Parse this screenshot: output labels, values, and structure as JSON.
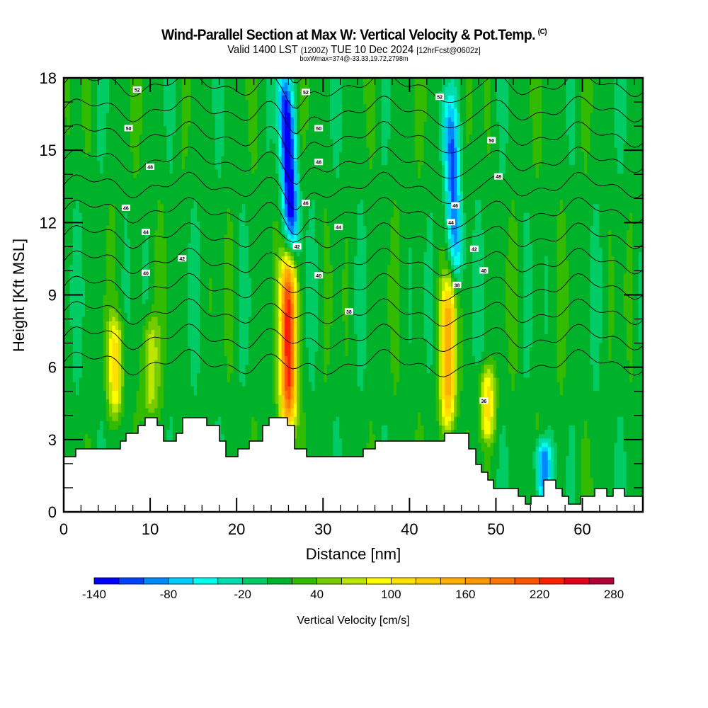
{
  "header": {
    "title": "Wind-Parallel Section at Max W: Vertical Velocity & Pot.Temp.",
    "copyright_mark": "(C)",
    "valid_prefix": "Valid 1400 LST",
    "valid_utc": "(1200Z)",
    "valid_date": "TUE 10 Dec 2024",
    "forecast_info": "[12hrFcst@0602z]",
    "box_info": "boxWmax=374@-33.33,19.72,2798m"
  },
  "chart_data": {
    "type": "heatmap",
    "title": "Wind-Parallel Section at Max W: Vertical Velocity & Pot.Temp.",
    "xlabel": "Distance [nm]",
    "ylabel": "Height [Kft MSL]",
    "xlim": [
      0,
      67
    ],
    "ylim": [
      0,
      18
    ],
    "x_ticks": [
      0,
      10,
      20,
      30,
      40,
      50,
      60
    ],
    "x_tick_labels": [
      "0",
      "10",
      "20",
      "30",
      "40",
      "50",
      "60"
    ],
    "y_ticks": [
      0,
      3,
      6,
      9,
      12,
      15,
      18
    ],
    "y_tick_labels": [
      "0",
      "3",
      "6",
      "9",
      "12",
      "15",
      "18"
    ],
    "colorbar": {
      "title": "Vertical Velocity [cm/s]",
      "min": -140,
      "max": 280,
      "step": 20,
      "tick_labels": [
        "-140",
        "-80",
        "-20",
        "40",
        "100",
        "160",
        "220",
        "280"
      ],
      "tick_values": [
        -140,
        -80,
        -20,
        40,
        100,
        160,
        220,
        280
      ],
      "colors": [
        "#0000ff",
        "#0044ff",
        "#0088ff",
        "#00ccff",
        "#00ffee",
        "#00ddaa",
        "#00cc66",
        "#00b22a",
        "#33bb00",
        "#77cc00",
        "#bbe600",
        "#ffff00",
        "#ffe000",
        "#ffcc00",
        "#ffb000",
        "#ff9900",
        "#ff7700",
        "#ff5500",
        "#ff2200",
        "#e0001a",
        "#b00038"
      ]
    },
    "features": [
      {
        "name": "updraft-core",
        "x_nm": 26,
        "z_kft_range": [
          3.5,
          10.5
        ],
        "w_max_cms": 240
      },
      {
        "name": "downdraft-core-upper",
        "x_nm": 26,
        "z_kft_range": [
          11,
          18
        ],
        "w_min_cms": -140
      },
      {
        "name": "updraft-east",
        "x_nm": 44.5,
        "z_kft_range": [
          3.5,
          9.5
        ],
        "w_max_cms": 150
      },
      {
        "name": "downdraft-east-upper",
        "x_nm": 45,
        "z_kft_range": [
          10,
          17
        ],
        "w_min_cms": -100
      },
      {
        "name": "updraft-west-1",
        "x_nm": 6,
        "z_kft_range": [
          4,
          8
        ],
        "w_max_cms": 100
      },
      {
        "name": "updraft-west-2",
        "x_nm": 10,
        "z_kft_range": [
          4,
          8
        ],
        "w_max_cms": 80
      },
      {
        "name": "updraft-50nm",
        "x_nm": 49,
        "z_kft_range": [
          3,
          6
        ],
        "w_max_cms": 100
      },
      {
        "name": "downdraft-55nm",
        "x_nm": 55.5,
        "z_kft_range": [
          0.5,
          3
        ],
        "w_min_cms": -100
      }
    ],
    "contours": {
      "field": "Potential Temperature",
      "labels": [
        {
          "text": "52",
          "x_nm": 8.5,
          "z_kft": 17.5
        },
        {
          "text": "50",
          "x_nm": 7.5,
          "z_kft": 15.9
        },
        {
          "text": "48",
          "x_nm": 10,
          "z_kft": 14.3
        },
        {
          "text": "46",
          "x_nm": 7.2,
          "z_kft": 12.6
        },
        {
          "text": "44",
          "x_nm": 9.5,
          "z_kft": 11.6
        },
        {
          "text": "42",
          "x_nm": 13.7,
          "z_kft": 10.5
        },
        {
          "text": "40",
          "x_nm": 9.5,
          "z_kft": 9.9
        },
        {
          "text": "52",
          "x_nm": 28,
          "z_kft": 17.4
        },
        {
          "text": "50",
          "x_nm": 29.5,
          "z_kft": 15.9
        },
        {
          "text": "48",
          "x_nm": 29.5,
          "z_kft": 14.5
        },
        {
          "text": "46",
          "x_nm": 28,
          "z_kft": 12.8
        },
        {
          "text": "44",
          "x_nm": 31.8,
          "z_kft": 11.8
        },
        {
          "text": "42",
          "x_nm": 27,
          "z_kft": 11.0
        },
        {
          "text": "40",
          "x_nm": 29.5,
          "z_kft": 9.8
        },
        {
          "text": "38",
          "x_nm": 33,
          "z_kft": 8.3
        },
        {
          "text": "52",
          "x_nm": 43.5,
          "z_kft": 17.2
        },
        {
          "text": "50",
          "x_nm": 49.5,
          "z_kft": 15.4
        },
        {
          "text": "48",
          "x_nm": 50.3,
          "z_kft": 13.9
        },
        {
          "text": "46",
          "x_nm": 45.3,
          "z_kft": 12.7
        },
        {
          "text": "44",
          "x_nm": 44.8,
          "z_kft": 12.0
        },
        {
          "text": "42",
          "x_nm": 47.5,
          "z_kft": 10.9
        },
        {
          "text": "40",
          "x_nm": 48.6,
          "z_kft": 10.0
        },
        {
          "text": "38",
          "x_nm": 45.5,
          "z_kft": 9.4
        },
        {
          "text": "36",
          "x_nm": 48.6,
          "z_kft": 4.6
        }
      ]
    }
  }
}
